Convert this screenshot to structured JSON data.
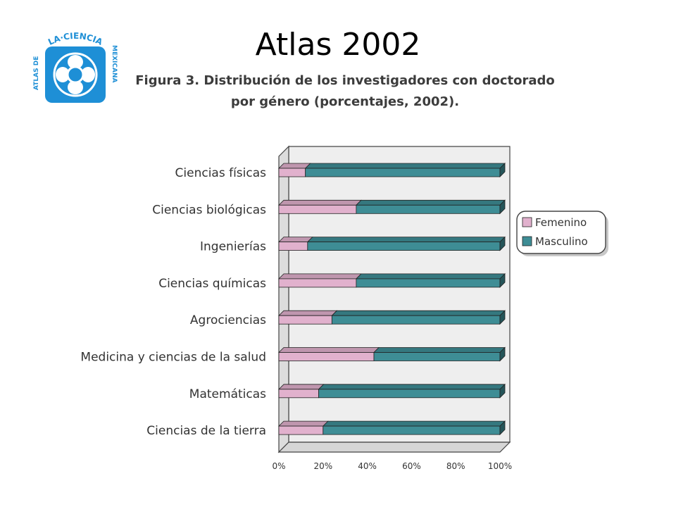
{
  "slide": {
    "title": "Atlas 2002"
  },
  "logo": {
    "top_text": "LA·CIENCIA",
    "left_text": "ATLAS DE",
    "right_text": "MEXICANA",
    "color": "#1e8fd6"
  },
  "figure": {
    "caption_line1": "Figura 3. Distribución de los investigadores con doctorado",
    "caption_line2": "por género (porcentajes, 2002)."
  },
  "chart_data": {
    "type": "bar",
    "orientation": "horizontal",
    "stacked": true,
    "categories": [
      "Ciencias físicas",
      "Ciencias biológicas",
      "Ingenierías",
      "Ciencias químicas",
      "Agrociencias",
      "Medicina y ciencias de la salud",
      "Matemáticas",
      "Ciencias de la tierra"
    ],
    "series": [
      {
        "name": "Femenino",
        "values": [
          12,
          35,
          13,
          35,
          24,
          43,
          18,
          20
        ],
        "color": "#e1b1cd"
      },
      {
        "name": "Masculino",
        "values": [
          88,
          65,
          87,
          65,
          76,
          57,
          82,
          80
        ],
        "color": "#3e8d95"
      }
    ],
    "x_ticks": [
      "0%",
      "20%",
      "40%",
      "60%",
      "80%",
      "100%"
    ],
    "xlim": [
      0,
      100
    ],
    "grid": false,
    "legend_position": "right"
  }
}
